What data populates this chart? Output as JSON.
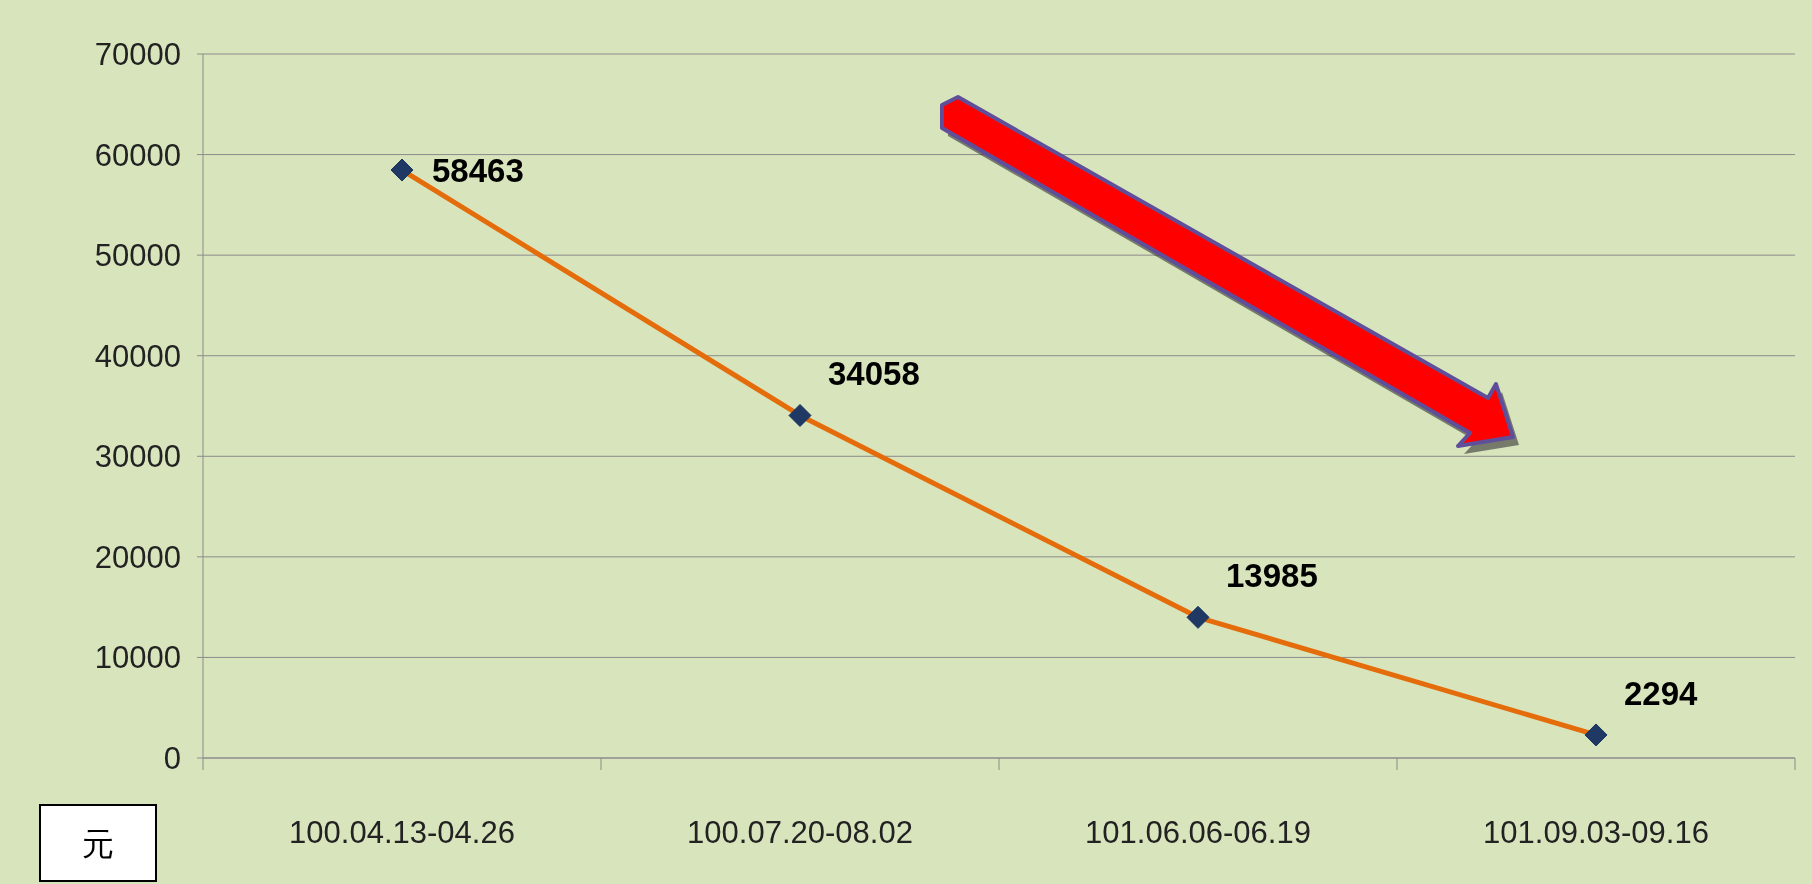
{
  "chart_data": {
    "type": "line",
    "ylabel": "元",
    "categories": [
      "100.04.13-04.26",
      "100.07.20-08.02",
      "101.06.06-06.19",
      "101.09.03-09.16"
    ],
    "series": [
      {
        "color": "#e46c0a",
        "values": [
          58463,
          34058,
          13985,
          2294
        ]
      }
    ],
    "ylim": [
      0,
      70000
    ],
    "yticks": [
      0,
      10000,
      20000,
      30000,
      40000,
      50000,
      60000,
      70000
    ],
    "grid": "y",
    "marker": "diamond",
    "line_style": "solid",
    "data_labels": true
  }
}
